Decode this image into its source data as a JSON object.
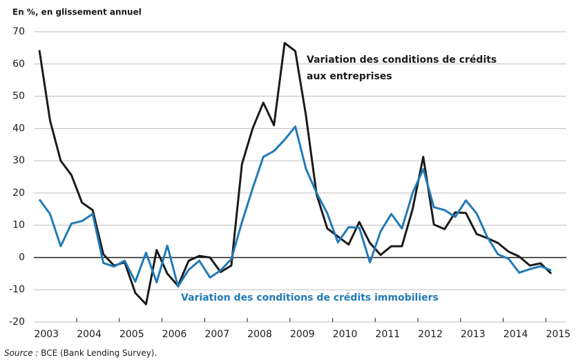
{
  "chart_data": {
    "type": "line",
    "subtitle": "En %, en glissement annuel",
    "categories": [
      "2003",
      null,
      null,
      null,
      "2004",
      null,
      null,
      null,
      "2005",
      null,
      null,
      null,
      "2006",
      null,
      null,
      null,
      "2007",
      null,
      null,
      null,
      "2008",
      null,
      null,
      null,
      "2009",
      null,
      null,
      null,
      "2010",
      null,
      null,
      null,
      "2011",
      null,
      null,
      null,
      "2012",
      null,
      null,
      null,
      "2013",
      null,
      null,
      null,
      "2014",
      null,
      null,
      null,
      "2015"
    ],
    "series": [
      {
        "name": "Variation des conditions de crédits aux entreprises",
        "name_lines": [
          "Variation des conditions de crédits",
          "aux entreprises"
        ],
        "color": "#1a1a1a",
        "values": [
          64.3,
          42.5,
          30,
          25.6,
          17,
          14.7,
          1,
          -2.5,
          -1.5,
          -11,
          -14.5,
          2.3,
          -5,
          -8.8,
          -1,
          0.5,
          0,
          -4.5,
          -2.5,
          29,
          40,
          48,
          41,
          66.5,
          64,
          44,
          19.5,
          9,
          6.5,
          4,
          11,
          4.5,
          0.8,
          3.5,
          3.5,
          15,
          31.2,
          10.2,
          8.8,
          14,
          13.8,
          7.3,
          6,
          4.5,
          1.8,
          0.3,
          -2.5,
          -1.8,
          -5
        ]
      },
      {
        "name": "Variation des conditions de crédits immobiliers",
        "color": "#1f7ab8",
        "values": [
          18,
          13.5,
          3.5,
          10.5,
          11.3,
          13.5,
          -1.7,
          -2.8,
          -1,
          -7.5,
          1.5,
          -7.7,
          3.7,
          -9,
          -3.8,
          -1,
          -6.2,
          -4,
          -0.5,
          11,
          21.4,
          31.2,
          33,
          36.5,
          40.6,
          27.5,
          20,
          13.7,
          4.7,
          9.4,
          9.2,
          -1.5,
          8.1,
          13.5,
          9,
          20,
          27.4,
          15.6,
          14.7,
          12.6,
          17.7,
          13.7,
          6.4,
          1,
          -0.4,
          -4.7,
          -3.6,
          -2.7,
          -4
        ]
      }
    ],
    "ylim": [
      -20,
      70
    ],
    "yticks": [
      -20,
      -10,
      0,
      10,
      20,
      30,
      40,
      50,
      60,
      70
    ],
    "grid": true,
    "source_label": "Source :",
    "source_text": "BCE (Bank Lending Survey)."
  }
}
